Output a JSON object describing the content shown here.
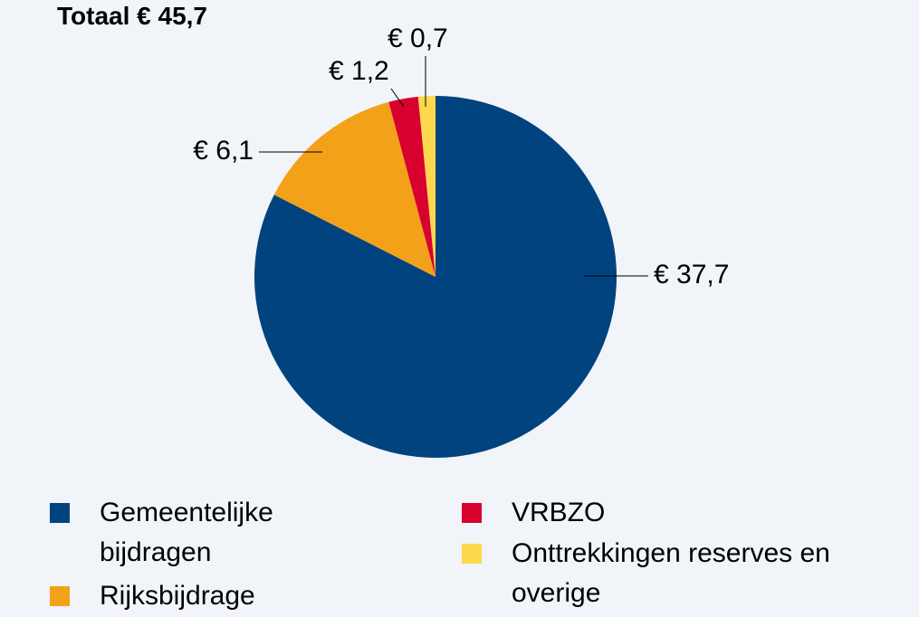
{
  "chart_data": {
    "type": "pie",
    "title": "Totaal € 45,7",
    "categories": [
      "Gemeentelijke bijdragen",
      "Rijksbijdrage",
      "VRBZO",
      "Onttrekkingen reserves en overige"
    ],
    "values": [
      37.7,
      6.1,
      1.2,
      0.7
    ],
    "value_labels": [
      "€ 37,7",
      "€ 6,1",
      "€ 1,2",
      "€ 0,7"
    ],
    "colors": [
      "#00437f",
      "#f4a11a",
      "#d8002f",
      "#fdd84f"
    ]
  }
}
